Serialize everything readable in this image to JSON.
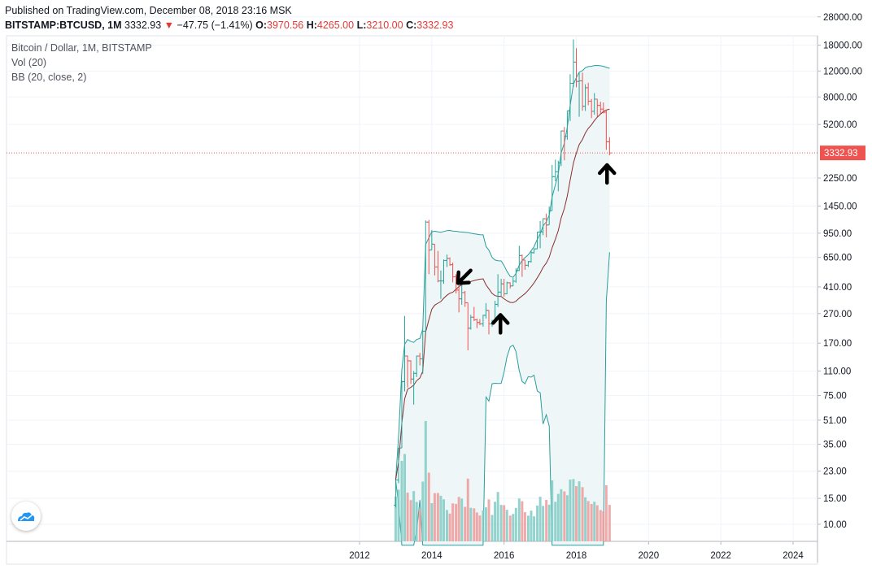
{
  "header": {
    "published": "Published on TradingView.com, December 08, 2018 23:16 MSK",
    "symbol": "BITSTAMP:BTCUSD, 1M",
    "last": "3332.93",
    "change": "−47.75 (−1.41%)",
    "o_label": "O:",
    "o": "3970.56",
    "h_label": "H:",
    "h": "4265.00",
    "l_label": "L:",
    "l": "3210.00",
    "c_label": "C:",
    "c": "3332.93"
  },
  "legend": {
    "title": "Bitcoin / Dollar, 1M, BITSTAMP",
    "vol": "Vol (20)",
    "bb": "BB (20, close, 2)"
  },
  "colors": {
    "up": "#26a69a",
    "down": "#ef5350",
    "bb_basis": "#8b2e2e",
    "bb_band": "#2a9d9d",
    "bb_fill": "#eef6f7",
    "price_line": "#ef5350",
    "vol_up": "#80cbc4",
    "vol_down": "#ef9a9a"
  },
  "chart_data": {
    "type": "candlestick",
    "y_scale": "log",
    "price_axis_ticks": [
      "28000.00",
      "18000.00",
      "12000.00",
      "8000.00",
      "5200.00",
      "2250.00",
      "1450.00",
      "950.00",
      "650.00",
      "410.00",
      "270.00",
      "170.00",
      "110.00",
      "75.00",
      "51.00",
      "35.00",
      "23.00",
      "15.00",
      "10.00"
    ],
    "last_price_label": "3332.93",
    "x_axis_ticks": [
      "2012",
      "2014",
      "2016",
      "2018",
      "2020",
      "2022",
      "2024"
    ],
    "series": [
      {
        "name": "BTCUSD",
        "ohlc": [
          [
            2013.0,
            13.5,
            20,
            13,
            20
          ],
          [
            2013.08,
            20,
            33,
            19,
            33
          ],
          [
            2013.17,
            33,
            95,
            33,
            93
          ],
          [
            2013.25,
            93,
            260,
            80,
            139
          ],
          [
            2013.33,
            139,
            140,
            85,
            129
          ],
          [
            2013.42,
            129,
            130,
            90,
            97
          ],
          [
            2013.5,
            97,
            110,
            65,
            106
          ],
          [
            2013.58,
            106,
            140,
            100,
            139
          ],
          [
            2013.67,
            139,
            146,
            120,
            133
          ],
          [
            2013.75,
            133,
            210,
            105,
            205
          ],
          [
            2013.83,
            205,
            1160,
            200,
            1130
          ],
          [
            2013.92,
            1130,
            1170,
            500,
            730
          ],
          [
            2014.0,
            730,
            1000,
            730,
            800
          ],
          [
            2014.08,
            800,
            800,
            490,
            560
          ],
          [
            2014.17,
            560,
            720,
            440,
            450
          ],
          [
            2014.25,
            450,
            530,
            340,
            450
          ],
          [
            2014.33,
            450,
            630,
            430,
            620
          ],
          [
            2014.42,
            620,
            680,
            560,
            640
          ],
          [
            2014.5,
            640,
            650,
            570,
            580
          ],
          [
            2014.58,
            580,
            600,
            440,
            480
          ],
          [
            2014.67,
            480,
            500,
            370,
            390
          ],
          [
            2014.75,
            390,
            420,
            275,
            340
          ],
          [
            2014.83,
            340,
            460,
            310,
            375
          ],
          [
            2014.92,
            375,
            385,
            300,
            320
          ],
          [
            2015.0,
            320,
            320,
            152,
            215
          ],
          [
            2015.08,
            215,
            265,
            210,
            255
          ],
          [
            2015.17,
            255,
            300,
            240,
            245
          ],
          [
            2015.25,
            245,
            250,
            215,
            235
          ],
          [
            2015.33,
            235,
            248,
            225,
            230
          ],
          [
            2015.42,
            230,
            265,
            220,
            263
          ],
          [
            2015.5,
            263,
            318,
            250,
            284
          ],
          [
            2015.58,
            284,
            285,
            195,
            230
          ],
          [
            2015.67,
            230,
            245,
            220,
            236
          ],
          [
            2015.75,
            236,
            330,
            235,
            312
          ],
          [
            2015.83,
            312,
            500,
            300,
            378
          ],
          [
            2015.92,
            378,
            465,
            350,
            430
          ],
          [
            2016.0,
            430,
            465,
            352,
            368
          ],
          [
            2016.08,
            368,
            445,
            365,
            437
          ],
          [
            2016.17,
            437,
            440,
            400,
            416
          ],
          [
            2016.25,
            416,
            470,
            415,
            448
          ],
          [
            2016.33,
            448,
            550,
            437,
            530
          ],
          [
            2016.42,
            530,
            780,
            525,
            670
          ],
          [
            2016.5,
            670,
            680,
            480,
            624
          ],
          [
            2016.58,
            624,
            625,
            535,
            575
          ],
          [
            2016.67,
            575,
            615,
            560,
            609
          ],
          [
            2016.75,
            609,
            720,
            600,
            700
          ],
          [
            2016.83,
            700,
            750,
            690,
            743
          ],
          [
            2016.92,
            743,
            970,
            740,
            966
          ],
          [
            2017.0,
            966,
            1150,
            750,
            970
          ],
          [
            2017.08,
            970,
            1200,
            920,
            1190
          ],
          [
            2017.17,
            1190,
            1290,
            890,
            1080
          ],
          [
            2017.25,
            1080,
            1440,
            1080,
            1350
          ],
          [
            2017.33,
            1350,
            2760,
            1350,
            2300
          ],
          [
            2017.42,
            2300,
            3000,
            2140,
            2480
          ],
          [
            2017.5,
            2480,
            2950,
            1830,
            2860
          ],
          [
            2017.58,
            2860,
            4740,
            2710,
            4700
          ],
          [
            2017.67,
            4700,
            5000,
            2970,
            4330
          ],
          [
            2017.75,
            4330,
            6450,
            4100,
            6440
          ],
          [
            2017.83,
            6440,
            11400,
            5500,
            9900
          ],
          [
            2017.92,
            9900,
            19670,
            9400,
            13800
          ],
          [
            2018.0,
            13800,
            17170,
            9300,
            10200
          ],
          [
            2018.08,
            10200,
            11790,
            5870,
            10300
          ],
          [
            2018.17,
            10300,
            11700,
            6450,
            6920
          ],
          [
            2018.25,
            6920,
            9760,
            6430,
            9240
          ],
          [
            2018.33,
            9240,
            9990,
            7030,
            7490
          ],
          [
            2018.42,
            7490,
            7760,
            5750,
            6390
          ],
          [
            2018.5,
            6390,
            8500,
            6060,
            7730
          ],
          [
            2018.58,
            7730,
            7760,
            5880,
            7010
          ],
          [
            2018.67,
            7010,
            7420,
            6120,
            6620
          ],
          [
            2018.75,
            6620,
            7340,
            6190,
            6300
          ],
          [
            2018.83,
            6300,
            6560,
            3500,
            3970
          ],
          [
            2018.92,
            3970,
            4265,
            3210,
            3332.93
          ]
        ]
      }
    ],
    "volume": {
      "name": "Vol (20)",
      "note": "relative heights"
    },
    "indicators": [
      "Bollinger Bands (20, close, 2)"
    ],
    "xlim": [
      2011.2,
      2024.7
    ],
    "ylim": [
      7,
      30000
    ],
    "annotations": [
      "down-left arrow near 2014.8",
      "up arrow near 2015.9",
      "up arrow near 2018.9"
    ]
  }
}
